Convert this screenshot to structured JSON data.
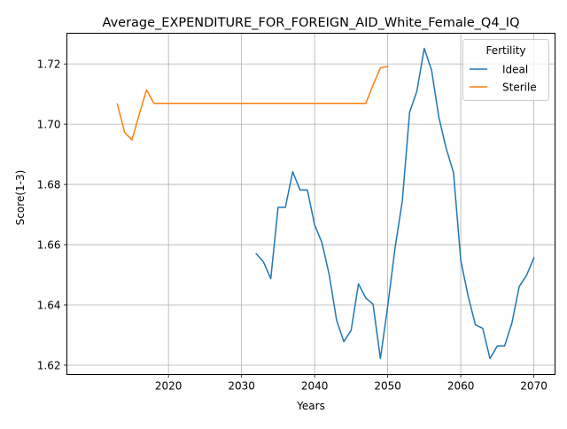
{
  "chart_data": {
    "type": "line",
    "title": "Average_EXPENDITURE_FOR_FOREIGN_AID_White_Female_Q4_IQ",
    "xlabel": "Years",
    "ylabel": "Score(1-3)",
    "xlim": [
      2006.1,
      2072.9
    ],
    "ylim": [
      1.6169,
      1.7302
    ],
    "xticks": [
      2020,
      2030,
      2040,
      2050,
      2060,
      2070
    ],
    "xtick_labels": [
      "2020",
      "2030",
      "2040",
      "2050",
      "2060",
      "2070"
    ],
    "yticks": [
      1.62,
      1.64,
      1.66,
      1.68,
      1.7,
      1.72
    ],
    "ytick_labels": [
      "1.62",
      "1.64",
      "1.66",
      "1.68",
      "1.70",
      "1.72"
    ],
    "grid": true,
    "legend": {
      "title": "Fertility",
      "placement": "top-right"
    },
    "series": [
      {
        "name": "Ideal",
        "color": "#1f77b4",
        "x": [
          2032,
          2033,
          2034,
          2035,
          2036,
          2037,
          2038,
          2039,
          2040,
          2041,
          2042,
          2043,
          2044,
          2045,
          2046,
          2047,
          2048,
          2049,
          2050,
          2051,
          2052,
          2053,
          2054,
          2055,
          2056,
          2057,
          2058,
          2059,
          2060,
          2061,
          2062,
          2063,
          2064,
          2065,
          2066,
          2067,
          2068,
          2069,
          2070
        ],
        "y": [
          1.657,
          1.6543,
          1.6487,
          1.6724,
          1.6724,
          1.6842,
          1.6782,
          1.6782,
          1.6666,
          1.6607,
          1.65,
          1.635,
          1.6278,
          1.6316,
          1.647,
          1.6423,
          1.6402,
          1.6222,
          1.6395,
          1.6588,
          1.6745,
          1.704,
          1.711,
          1.7252,
          1.718,
          1.7023,
          1.692,
          1.684,
          1.6548,
          1.643,
          1.6334,
          1.6322,
          1.6222,
          1.6264,
          1.6264,
          1.634,
          1.6461,
          1.6498,
          1.6556
        ]
      },
      {
        "name": "Sterile",
        "color": "#ff7f0e",
        "x": [
          2013,
          2014,
          2015,
          2016,
          2017,
          2018,
          2019,
          2020,
          2021,
          2022,
          2023,
          2024,
          2025,
          2026,
          2027,
          2028,
          2029,
          2030,
          2031,
          2032,
          2033,
          2034,
          2035,
          2036,
          2037,
          2038,
          2039,
          2040,
          2041,
          2042,
          2043,
          2044,
          2045,
          2046,
          2047,
          2048,
          2049,
          2050
        ],
        "y": [
          1.7067,
          1.6973,
          1.6948,
          1.7032,
          1.7114,
          1.7069,
          1.7069,
          1.7069,
          1.7069,
          1.7069,
          1.7069,
          1.7069,
          1.7069,
          1.7069,
          1.7069,
          1.7069,
          1.7069,
          1.7069,
          1.7069,
          1.7069,
          1.7069,
          1.7069,
          1.7069,
          1.7069,
          1.7069,
          1.7069,
          1.7069,
          1.7069,
          1.7069,
          1.7069,
          1.7069,
          1.7069,
          1.7069,
          1.7069,
          1.7069,
          1.713,
          1.7187,
          1.7192
        ]
      }
    ]
  }
}
